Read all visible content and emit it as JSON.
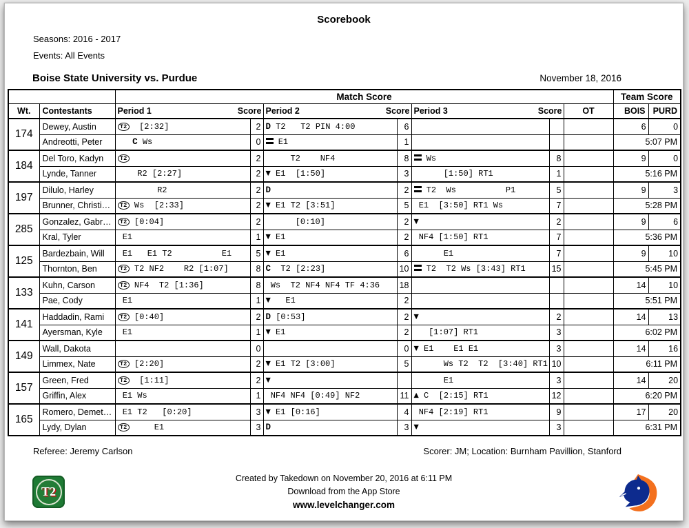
{
  "page": {
    "title": "Scorebook",
    "seasons": "Seasons: 2016 - 2017",
    "events": "Events: All Events",
    "matchup": "Boise State University vs. Purdue",
    "date": "November 18, 2016"
  },
  "icons": {
    "t2": "T2",
    "D": "D",
    "C": "C",
    "dn": "▼",
    "up": "▲"
  },
  "table": {
    "headers": {
      "match_score": "Match Score",
      "team_score": "Team Score",
      "wt": "Wt.",
      "contestants": "Contestants",
      "period1": "Period 1",
      "period2": "Period 2",
      "period3": "Period 3",
      "score": "Score",
      "ot": "OT",
      "bois": "BOIS",
      "purd": "PURD"
    },
    "matches": [
      {
        "weight": "174",
        "bois": "6",
        "purd": "0",
        "time": "5:07 PM",
        "wrestlers": [
          {
            "name": "Dewey, Austin",
            "periods": [
              {
                "i": "t2",
                "t": "  [2:32]"
              },
              {
                "i": "D",
                "t": " T2   T2 PIN 4:00"
              },
              {
                "i": "",
                "t": ""
              }
            ],
            "scores": [
              "2",
              "6",
              ""
            ]
          },
          {
            "name": "Andreotti, Peter",
            "periods": [
              {
                "i": "C",
                "pre": "   ",
                "t": " Ws"
              },
              {
                "i": "eq",
                "t": " E1"
              },
              {
                "i": "",
                "t": ""
              }
            ],
            "scores": [
              "0",
              "1",
              ""
            ]
          }
        ]
      },
      {
        "weight": "184",
        "bois": "9",
        "purd": "0",
        "time": "5:16 PM",
        "wrestlers": [
          {
            "name": "Del Toro, Kadyn",
            "periods": [
              {
                "i": "t2",
                "t": ""
              },
              {
                "i": "",
                "t": "     T2    NF4"
              },
              {
                "i": "eq",
                "t": " Ws"
              }
            ],
            "scores": [
              "2",
              "8",
              "8"
            ]
          },
          {
            "name": "Lynde, Tanner",
            "periods": [
              {
                "i": "",
                "t": "    R2 [2:27]"
              },
              {
                "i": "dn",
                "t": " E1  [1:50]"
              },
              {
                "i": "",
                "t": "      [1:50] RT1"
              }
            ],
            "scores": [
              "2",
              "3",
              "1"
            ]
          }
        ]
      },
      {
        "weight": "197",
        "bois": "9",
        "purd": "3",
        "time": "5:28 PM",
        "wrestlers": [
          {
            "name": "Dilulo, Harley",
            "periods": [
              {
                "i": "",
                "t": "        R2"
              },
              {
                "i": "D",
                "t": ""
              },
              {
                "i": "eq",
                "t": " T2  Ws          P1"
              }
            ],
            "scores": [
              "2",
              "2",
              "5"
            ]
          },
          {
            "name": "Brunner, Christi…",
            "periods": [
              {
                "i": "t2",
                "t": " Ws  [2:33]"
              },
              {
                "i": "dn",
                "t": " E1 T2 [3:51]"
              },
              {
                "i": "",
                "t": " E1  [3:50] RT1 Ws"
              }
            ],
            "scores": [
              "2",
              "5",
              "7"
            ]
          }
        ]
      },
      {
        "weight": "285",
        "bois": "9",
        "purd": "6",
        "time": "5:36 PM",
        "wrestlers": [
          {
            "name": "Gonzalez, Gabr…",
            "periods": [
              {
                "i": "t2",
                "t": " [0:04]"
              },
              {
                "i": "",
                "t": "      [0:10]"
              },
              {
                "i": "dn",
                "t": ""
              }
            ],
            "scores": [
              "2",
              "2",
              "2"
            ]
          },
          {
            "name": "Kral, Tyler",
            "periods": [
              {
                "i": "",
                "t": " E1"
              },
              {
                "i": "dn",
                "t": " E1"
              },
              {
                "i": "",
                "t": " NF4 [1:50] RT1"
              }
            ],
            "scores": [
              "1",
              "2",
              "7"
            ]
          }
        ]
      },
      {
        "weight": "125",
        "bois": "9",
        "purd": "10",
        "time": "5:45 PM",
        "wrestlers": [
          {
            "name": "Bardezbain, Will",
            "periods": [
              {
                "i": "",
                "t": " E1   E1 T2          E1"
              },
              {
                "i": "dn",
                "t": " E1"
              },
              {
                "i": "",
                "t": "      E1"
              }
            ],
            "scores": [
              "5",
              "6",
              "7"
            ]
          },
          {
            "name": "Thornton, Ben",
            "periods": [
              {
                "i": "t2",
                "t": " T2 NF2    R2 [1:07]"
              },
              {
                "i": "C",
                "t": "  T2 [2:23]"
              },
              {
                "i": "eq",
                "t": " T2  T2 Ws [3:43] RT1"
              }
            ],
            "scores": [
              "8",
              "10",
              "15"
            ]
          }
        ]
      },
      {
        "weight": "133",
        "bois": "14",
        "purd": "10",
        "time": "5:51 PM",
        "wrestlers": [
          {
            "name": "Kuhn, Carson",
            "periods": [
              {
                "i": "t2",
                "t": " NF4  T2 [1:36]"
              },
              {
                "i": "",
                "t": " Ws  T2 NF4 NF4 TF 4:36"
              },
              {
                "i": "",
                "t": ""
              }
            ],
            "scores": [
              "8",
              "18",
              ""
            ]
          },
          {
            "name": "Pae, Cody",
            "periods": [
              {
                "i": "",
                "t": " E1"
              },
              {
                "i": "dn",
                "t": "   E1"
              },
              {
                "i": "",
                "t": ""
              }
            ],
            "scores": [
              "1",
              "2",
              ""
            ]
          }
        ]
      },
      {
        "weight": "141",
        "bois": "14",
        "purd": "13",
        "time": "6:02 PM",
        "wrestlers": [
          {
            "name": "Haddadin, Rami",
            "periods": [
              {
                "i": "t2",
                "t": " [0:40]"
              },
              {
                "i": "D",
                "t": " [0:53]"
              },
              {
                "i": "dn",
                "t": ""
              }
            ],
            "scores": [
              "2",
              "2",
              "2"
            ]
          },
          {
            "name": "Ayersman, Kyle",
            "periods": [
              {
                "i": "",
                "t": " E1"
              },
              {
                "i": "dn",
                "t": " E1"
              },
              {
                "i": "",
                "t": "   [1:07] RT1"
              }
            ],
            "scores": [
              "1",
              "2",
              "3"
            ]
          }
        ]
      },
      {
        "weight": "149",
        "bois": "14",
        "purd": "16",
        "time": "6:11 PM",
        "wrestlers": [
          {
            "name": "Wall, Dakota",
            "periods": [
              {
                "i": "",
                "t": ""
              },
              {
                "i": "",
                "t": ""
              },
              {
                "i": "dn",
                "t": " E1    E1 E1"
              }
            ],
            "scores": [
              "0",
              "0",
              "3"
            ]
          },
          {
            "name": "Limmex, Nate",
            "periods": [
              {
                "i": "t2",
                "t": " [2:20]"
              },
              {
                "i": "dn",
                "t": " E1 T2 [3:00]"
              },
              {
                "i": "",
                "t": "      Ws T2  T2  [3:40] RT1"
              }
            ],
            "scores": [
              "2",
              "5",
              "10"
            ]
          }
        ]
      },
      {
        "weight": "157",
        "bois": "14",
        "purd": "20",
        "time": "6:20 PM",
        "wrestlers": [
          {
            "name": "Green, Fred",
            "periods": [
              {
                "i": "t2",
                "t": "  [1:11]"
              },
              {
                "i": "dn",
                "t": ""
              },
              {
                "i": "",
                "t": "      E1"
              }
            ],
            "scores": [
              "2",
              "",
              "3"
            ]
          },
          {
            "name": "Griffin, Alex",
            "periods": [
              {
                "i": "",
                "t": " E1 Ws"
              },
              {
                "i": "",
                "t": " NF4 NF4 [0:49] NF2"
              },
              {
                "i": "up",
                "t": " C  [2:15] RT1"
              }
            ],
            "scores": [
              "1",
              "11",
              "12"
            ]
          }
        ]
      },
      {
        "weight": "165",
        "bois": "17",
        "purd": "20",
        "time": "6:31 PM",
        "wrestlers": [
          {
            "name": "Romero, Demet…",
            "periods": [
              {
                "i": "",
                "t": " E1 T2   [0:20]"
              },
              {
                "i": "dn",
                "t": " E1 [0:16]"
              },
              {
                "i": "",
                "t": " NF4 [2:19] RT1"
              }
            ],
            "scores": [
              "3",
              "4",
              "9"
            ]
          },
          {
            "name": "Lydy, Dylan",
            "periods": [
              {
                "i": "t2",
                "t": "     E1"
              },
              {
                "i": "D",
                "t": ""
              },
              {
                "i": "dn",
                "t": ""
              }
            ],
            "scores": [
              "3",
              "3",
              "3"
            ]
          }
        ]
      }
    ]
  },
  "footer": {
    "referee": "Referee: Jeremy Carlson",
    "scorer": "Scorer: JM; Location: Burnham Pavillion, Stanford",
    "created": "Created by Takedown on November 20, 2016 at 6:11 PM",
    "download": "Download from the App Store",
    "website": "www.levelchanger.com"
  },
  "logos": {
    "t2_label": "T2"
  },
  "colors": {
    "t2_green": "#1e7a34",
    "bronco_orange": "#F3701E",
    "bronco_blue": "#0D2B8E"
  }
}
